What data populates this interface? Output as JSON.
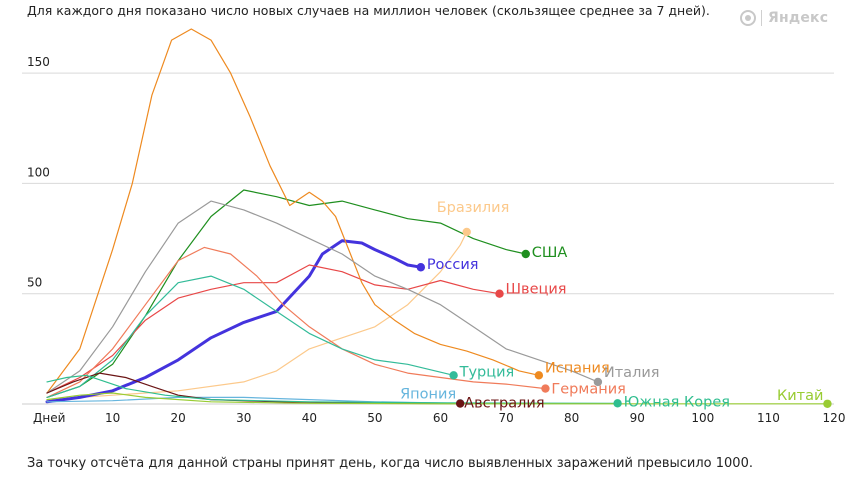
{
  "header": {
    "subtitle": "Для каждого дня показано число новых случаев на миллион человек (скользящее среднее за 7 дней)."
  },
  "footer": {
    "note": "За точку отсчёта для данной страны принят день, когда число выявленных заражений превысило 1000."
  },
  "brand": {
    "name": "Яндекс",
    "color": "#c8c8c8"
  },
  "chart_data": {
    "type": "line",
    "x_first_tick_label": "Дней",
    "xlim": [
      0,
      120
    ],
    "ylim": [
      0,
      175
    ],
    "x_ticks": [
      0,
      10,
      20,
      30,
      40,
      50,
      60,
      70,
      80,
      90,
      100,
      110,
      120
    ],
    "y_ticks": [
      50,
      100,
      150
    ],
    "grid": true,
    "series": [
      {
        "name": "Бразилия",
        "color": "#fcc98b",
        "width": 1.2,
        "points": [
          [
            0,
            2
          ],
          [
            10,
            4
          ],
          [
            20,
            6
          ],
          [
            30,
            10
          ],
          [
            35,
            15
          ],
          [
            40,
            25
          ],
          [
            45,
            30
          ],
          [
            50,
            35
          ],
          [
            55,
            45
          ],
          [
            60,
            60
          ],
          [
            63,
            72
          ],
          [
            64,
            78
          ]
        ]
      },
      {
        "name": "США",
        "color": "#1f8f1f",
        "width": 1.2,
        "points": [
          [
            0,
            3
          ],
          [
            5,
            8
          ],
          [
            10,
            18
          ],
          [
            15,
            40
          ],
          [
            20,
            65
          ],
          [
            25,
            85
          ],
          [
            30,
            97
          ],
          [
            35,
            94
          ],
          [
            40,
            90
          ],
          [
            45,
            92
          ],
          [
            50,
            88
          ],
          [
            55,
            84
          ],
          [
            60,
            82
          ],
          [
            65,
            75
          ],
          [
            70,
            70
          ],
          [
            73,
            68
          ]
        ]
      },
      {
        "name": "Россия",
        "color": "#4433dd",
        "width": 3,
        "points": [
          [
            0,
            1
          ],
          [
            5,
            3
          ],
          [
            10,
            6
          ],
          [
            15,
            12
          ],
          [
            20,
            20
          ],
          [
            25,
            30
          ],
          [
            30,
            37
          ],
          [
            35,
            42
          ],
          [
            40,
            58
          ],
          [
            42,
            68
          ],
          [
            45,
            74
          ],
          [
            48,
            73
          ],
          [
            50,
            70
          ],
          [
            53,
            66
          ],
          [
            55,
            63
          ],
          [
            57,
            62
          ]
        ]
      },
      {
        "name": "Швеция",
        "color": "#e84848",
        "width": 1.2,
        "points": [
          [
            0,
            5
          ],
          [
            5,
            12
          ],
          [
            10,
            22
          ],
          [
            15,
            38
          ],
          [
            20,
            48
          ],
          [
            25,
            52
          ],
          [
            30,
            55
          ],
          [
            35,
            55
          ],
          [
            40,
            63
          ],
          [
            45,
            60
          ],
          [
            50,
            54
          ],
          [
            55,
            52
          ],
          [
            60,
            56
          ],
          [
            65,
            52
          ],
          [
            69,
            50
          ]
        ]
      },
      {
        "name": "Испания",
        "color": "#ee8a20",
        "width": 1.2,
        "points": [
          [
            0,
            5
          ],
          [
            5,
            25
          ],
          [
            10,
            70
          ],
          [
            13,
            100
          ],
          [
            16,
            140
          ],
          [
            19,
            165
          ],
          [
            22,
            170
          ],
          [
            25,
            165
          ],
          [
            28,
            150
          ],
          [
            31,
            130
          ],
          [
            34,
            108
          ],
          [
            37,
            90
          ],
          [
            40,
            96
          ],
          [
            42,
            92
          ],
          [
            44,
            85
          ],
          [
            46,
            70
          ],
          [
            48,
            55
          ],
          [
            50,
            45
          ],
          [
            53,
            38
          ],
          [
            56,
            32
          ],
          [
            60,
            27
          ],
          [
            64,
            24
          ],
          [
            68,
            20
          ],
          [
            72,
            15
          ],
          [
            75,
            13
          ]
        ]
      },
      {
        "name": "Италия",
        "color": "#9a9a9a",
        "width": 1.2,
        "points": [
          [
            0,
            5
          ],
          [
            5,
            15
          ],
          [
            10,
            35
          ],
          [
            15,
            60
          ],
          [
            20,
            82
          ],
          [
            25,
            92
          ],
          [
            30,
            88
          ],
          [
            35,
            82
          ],
          [
            40,
            75
          ],
          [
            45,
            68
          ],
          [
            50,
            58
          ],
          [
            55,
            52
          ],
          [
            60,
            45
          ],
          [
            65,
            35
          ],
          [
            70,
            25
          ],
          [
            75,
            20
          ],
          [
            80,
            15
          ],
          [
            84,
            10
          ]
        ]
      },
      {
        "name": "Германия",
        "color": "#f07b5a",
        "width": 1.2,
        "points": [
          [
            0,
            3
          ],
          [
            5,
            10
          ],
          [
            10,
            25
          ],
          [
            15,
            45
          ],
          [
            20,
            65
          ],
          [
            24,
            71
          ],
          [
            28,
            68
          ],
          [
            32,
            58
          ],
          [
            36,
            45
          ],
          [
            40,
            35
          ],
          [
            45,
            25
          ],
          [
            50,
            18
          ],
          [
            55,
            14
          ],
          [
            60,
            12
          ],
          [
            65,
            10
          ],
          [
            70,
            9
          ],
          [
            76,
            7
          ]
        ]
      },
      {
        "name": "Турция",
        "color": "#33bb99",
        "width": 1.2,
        "points": [
          [
            0,
            3
          ],
          [
            5,
            8
          ],
          [
            10,
            20
          ],
          [
            15,
            40
          ],
          [
            20,
            55
          ],
          [
            25,
            58
          ],
          [
            30,
            52
          ],
          [
            35,
            42
          ],
          [
            40,
            32
          ],
          [
            45,
            25
          ],
          [
            50,
            20
          ],
          [
            55,
            18
          ],
          [
            62,
            13
          ]
        ]
      },
      {
        "name": "Япония",
        "color": "#66b5dd",
        "width": 1.2,
        "points": [
          [
            0,
            1
          ],
          [
            10,
            1.5
          ],
          [
            20,
            3
          ],
          [
            30,
            3
          ],
          [
            40,
            2
          ],
          [
            50,
            1
          ],
          [
            63,
            0.3
          ]
        ]
      },
      {
        "name": "Австралия",
        "color": "#6b1515",
        "width": 1.2,
        "points": [
          [
            0,
            5
          ],
          [
            4,
            10
          ],
          [
            8,
            14
          ],
          [
            12,
            12
          ],
          [
            16,
            8
          ],
          [
            20,
            4
          ],
          [
            25,
            2
          ],
          [
            35,
            1
          ],
          [
            50,
            0.3
          ],
          [
            63,
            0.2
          ]
        ]
      },
      {
        "name": "Южная Корея",
        "color": "#2fbe8f",
        "width": 1.2,
        "points": [
          [
            0,
            10
          ],
          [
            3,
            12
          ],
          [
            6,
            13
          ],
          [
            9,
            10
          ],
          [
            12,
            7
          ],
          [
            18,
            4
          ],
          [
            25,
            2
          ],
          [
            40,
            1
          ],
          [
            60,
            0.5
          ],
          [
            87,
            0.3
          ]
        ]
      },
      {
        "name": "Китай",
        "color": "#99cc33",
        "width": 1.2,
        "points": [
          [
            0,
            2
          ],
          [
            5,
            4
          ],
          [
            10,
            5
          ],
          [
            15,
            3
          ],
          [
            25,
            1
          ],
          [
            40,
            0.3
          ],
          [
            60,
            0.1
          ],
          [
            90,
            0.1
          ],
          [
            119,
            0.1
          ]
        ]
      }
    ]
  }
}
